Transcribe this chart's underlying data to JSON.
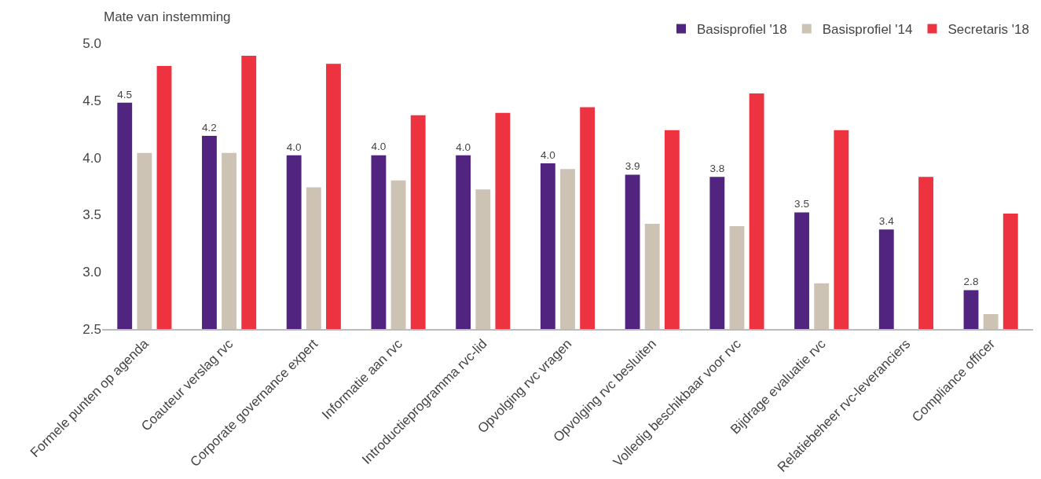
{
  "chart_data": {
    "type": "bar",
    "ylabel": "Mate van instemming",
    "categories": [
      "Formele punten op agenda",
      "Coauteur verslag rvc",
      "Corporate governance expert",
      "Informatie aan rvc",
      "Introductieprogramma rvc-lid",
      "Opvolging rvc vragen",
      "Opvolging rvc besluiten",
      "Volledig beschikbaar voor rvc",
      "Bijdrage evaluatie rvc",
      "Relatiebeheer rvc-leveranciers",
      "Compliance officer"
    ],
    "series": [
      {
        "name": "Basisprofiel '18",
        "color": "#512480",
        "values": [
          4.48,
          4.19,
          4.02,
          4.02,
          4.02,
          3.95,
          3.85,
          3.83,
          3.52,
          3.37,
          2.84
        ],
        "value_labels": [
          "4.5",
          "4.2",
          "4.0",
          "4.0",
          "4.0",
          "4.0",
          "3.9",
          "3.8",
          "3.5",
          "3.4",
          "2.8"
        ]
      },
      {
        "name": "Basisprofiel '14",
        "color": "#cdc3b5",
        "values": [
          4.04,
          4.04,
          3.74,
          3.8,
          3.72,
          3.9,
          3.42,
          3.4,
          2.9,
          null,
          2.63
        ]
      },
      {
        "name": "Secretaris '18",
        "color": "#ee3340",
        "values": [
          4.8,
          4.89,
          4.82,
          4.37,
          4.39,
          4.44,
          4.24,
          4.56,
          4.24,
          3.83,
          3.51
        ]
      }
    ],
    "ylim": [
      2.5,
      5.0
    ],
    "yticks": [
      {
        "value": 2.5,
        "label": "2.5"
      },
      {
        "value": 3.0,
        "label": "3.0"
      },
      {
        "value": 3.5,
        "label": "3.5"
      },
      {
        "value": 4.0,
        "label": "4.0"
      },
      {
        "value": 4.5,
        "label": "4.5"
      },
      {
        "value": 5.0,
        "label": "5.0"
      }
    ],
    "legend": "top right"
  }
}
